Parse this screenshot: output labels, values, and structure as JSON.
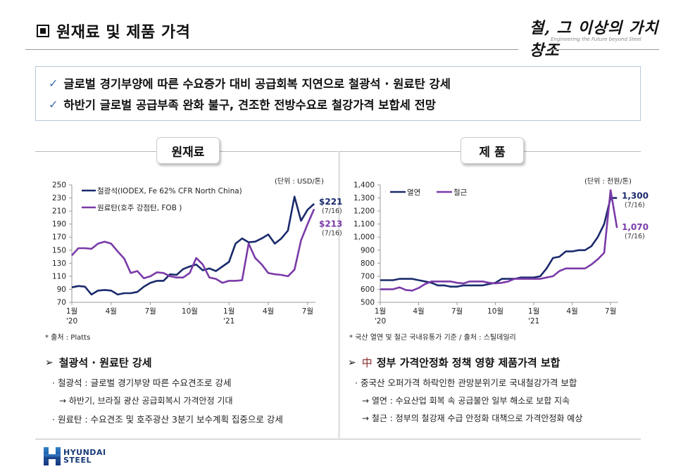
{
  "header": {
    "title": "원재료 및 제품 가격",
    "slogan_ko": "철, 그 이상의 가치창조",
    "slogan_en": "Engineering the Future beyond Steel"
  },
  "summary": {
    "items": [
      "글로벌 경기부양에 따른 수요증가 대비 공급회복 지연으로 철광석 · 원료탄 강세",
      "하반기 글로벌 공급부족 완화 불구, 견조한 전방수요로 철강가격 보합세 전망"
    ]
  },
  "sections": {
    "left_label": "원재료",
    "right_label": "제 품"
  },
  "left": {
    "unit": "(단위 : USD/톤)",
    "source": "* 출처 : Platts",
    "labels": [
      {
        "value": "$221",
        "date": "(7/16)",
        "color": "#1a2a6c"
      },
      {
        "value": "$213",
        "date": "(7/16)",
        "color": "#7a3aa8"
      }
    ],
    "bullets": {
      "head": "철광석 · 원료탄 강세",
      "items": [
        {
          "type": "item",
          "text": "· 철광석 : 글로벌 경기부양 따른 수요견조로 강세"
        },
        {
          "type": "sub",
          "text": "→ 하반기, 브라질 광산 공급회복시 가격안정 기대"
        },
        {
          "type": "item",
          "text": "· 원료탄 : 수요견조 및 호주광산 3분기 보수계획 집중으로 강세"
        }
      ]
    }
  },
  "right": {
    "unit": "(단위 : 천원/톤)",
    "source": "* 국산 열연 및 철근 국내유통가 기준 / 출처 : 스틸데일리",
    "labels": [
      {
        "value": "1,300",
        "date": "(7/16)",
        "color": "#1a2a6c"
      },
      {
        "value": "1,070",
        "date": "(7/16)",
        "color": "#7a3aa8"
      }
    ],
    "bullets": {
      "head_prefix": "中",
      "head": "정부 가격안정화 정책 영향 제품가격 보합",
      "items": [
        {
          "type": "item",
          "text": "· 중국산 오퍼가격 하락인한 관망분위기로 국내철강가격 보합"
        },
        {
          "type": "sub",
          "text": "→ 열연 : 수요산업 회복 속 공급불안 일부 해소로 보합 지속"
        },
        {
          "type": "sub",
          "text": "→ 철근 : 정부의 철강재 수급 안정화 대책으로 가격안정화 예상"
        }
      ]
    }
  },
  "footer": {
    "logo_line1": "HYUNDAI",
    "logo_line2": "STEEL"
  },
  "chart_data": [
    {
      "type": "line",
      "title": "원재료",
      "ylabel": "USD/톤",
      "ylim": [
        70,
        250
      ],
      "yticks": [
        70,
        90,
        110,
        130,
        150,
        170,
        190,
        210,
        230,
        250
      ],
      "xticks": [
        "1월",
        "4월",
        "7월",
        "10월",
        "1월",
        "4월",
        "7월"
      ],
      "xtick_years": [
        {
          "tick": 0,
          "label": "'20"
        },
        {
          "tick": 4,
          "label": "'21"
        }
      ],
      "legend_position": "top-left",
      "x_months": [
        0,
        0.5,
        1,
        1.5,
        2,
        2.5,
        3,
        3.5,
        4,
        4.5,
        5,
        5.5,
        6,
        6.5,
        7,
        7.5,
        8,
        8.5,
        9,
        9.5,
        10,
        10.5,
        11,
        11.5,
        12,
        12.5,
        13,
        13.5,
        14,
        14.5,
        15,
        15.5,
        16,
        16.5,
        17,
        17.5,
        18,
        18.5
      ],
      "series": [
        {
          "name": "철광석(IODEX, Fe 62% CFR North China)",
          "color": "#1a2a6c",
          "values": [
            93,
            95,
            94,
            82,
            88,
            89,
            88,
            82,
            84,
            84,
            86,
            94,
            100,
            103,
            103,
            113,
            112,
            121,
            125,
            128,
            119,
            122,
            118,
            125,
            132,
            160,
            168,
            162,
            163,
            168,
            174,
            160,
            168,
            180,
            232,
            195,
            212,
            221
          ]
        },
        {
          "name": "원료탄(호주 강점탄, FOB )",
          "color": "#7a3aa8",
          "values": [
            142,
            153,
            153,
            152,
            160,
            163,
            160,
            148,
            137,
            115,
            118,
            107,
            110,
            116,
            115,
            110,
            108,
            108,
            115,
            138,
            128,
            108,
            106,
            100,
            103,
            103,
            104,
            160,
            138,
            128,
            115,
            113,
            112,
            110,
            120,
            165,
            190,
            213
          ]
        }
      ]
    },
    {
      "type": "line",
      "title": "제 품",
      "ylabel": "천원/톤",
      "ylim": [
        500,
        1400
      ],
      "yticks": [
        500,
        600,
        700,
        800,
        900,
        1000,
        1100,
        1200,
        1300,
        1400
      ],
      "xticks": [
        "1월",
        "4월",
        "7월",
        "10월",
        "1월",
        "4월",
        "7월"
      ],
      "xtick_years": [
        {
          "tick": 0,
          "label": "'20"
        },
        {
          "tick": 4,
          "label": "'21"
        }
      ],
      "legend_position": "top-left",
      "x_months": [
        0,
        0.5,
        1,
        1.5,
        2,
        2.5,
        3,
        3.5,
        4,
        4.5,
        5,
        5.5,
        6,
        6.5,
        7,
        7.5,
        8,
        8.5,
        9,
        9.5,
        10,
        10.5,
        11,
        11.5,
        12,
        12.5,
        13,
        13.5,
        14,
        14.5,
        15,
        15.5,
        16,
        16.5,
        17,
        17.5,
        18,
        18.5
      ],
      "series": [
        {
          "name": "열연",
          "color": "#1a2a6c",
          "values": [
            670,
            670,
            670,
            680,
            680,
            680,
            670,
            660,
            650,
            630,
            630,
            620,
            620,
            630,
            630,
            630,
            630,
            640,
            650,
            680,
            680,
            680,
            690,
            690,
            690,
            700,
            760,
            840,
            850,
            890,
            890,
            900,
            900,
            930,
            1000,
            1100,
            1300,
            1300
          ]
        },
        {
          "name": "철근",
          "color": "#7a3aa8",
          "values": [
            600,
            600,
            600,
            615,
            595,
            590,
            610,
            640,
            660,
            660,
            660,
            660,
            650,
            645,
            660,
            660,
            660,
            650,
            645,
            650,
            660,
            680,
            680,
            680,
            680,
            680,
            690,
            700,
            740,
            760,
            760,
            760,
            760,
            790,
            830,
            880,
            1360,
            1070
          ]
        }
      ]
    }
  ]
}
